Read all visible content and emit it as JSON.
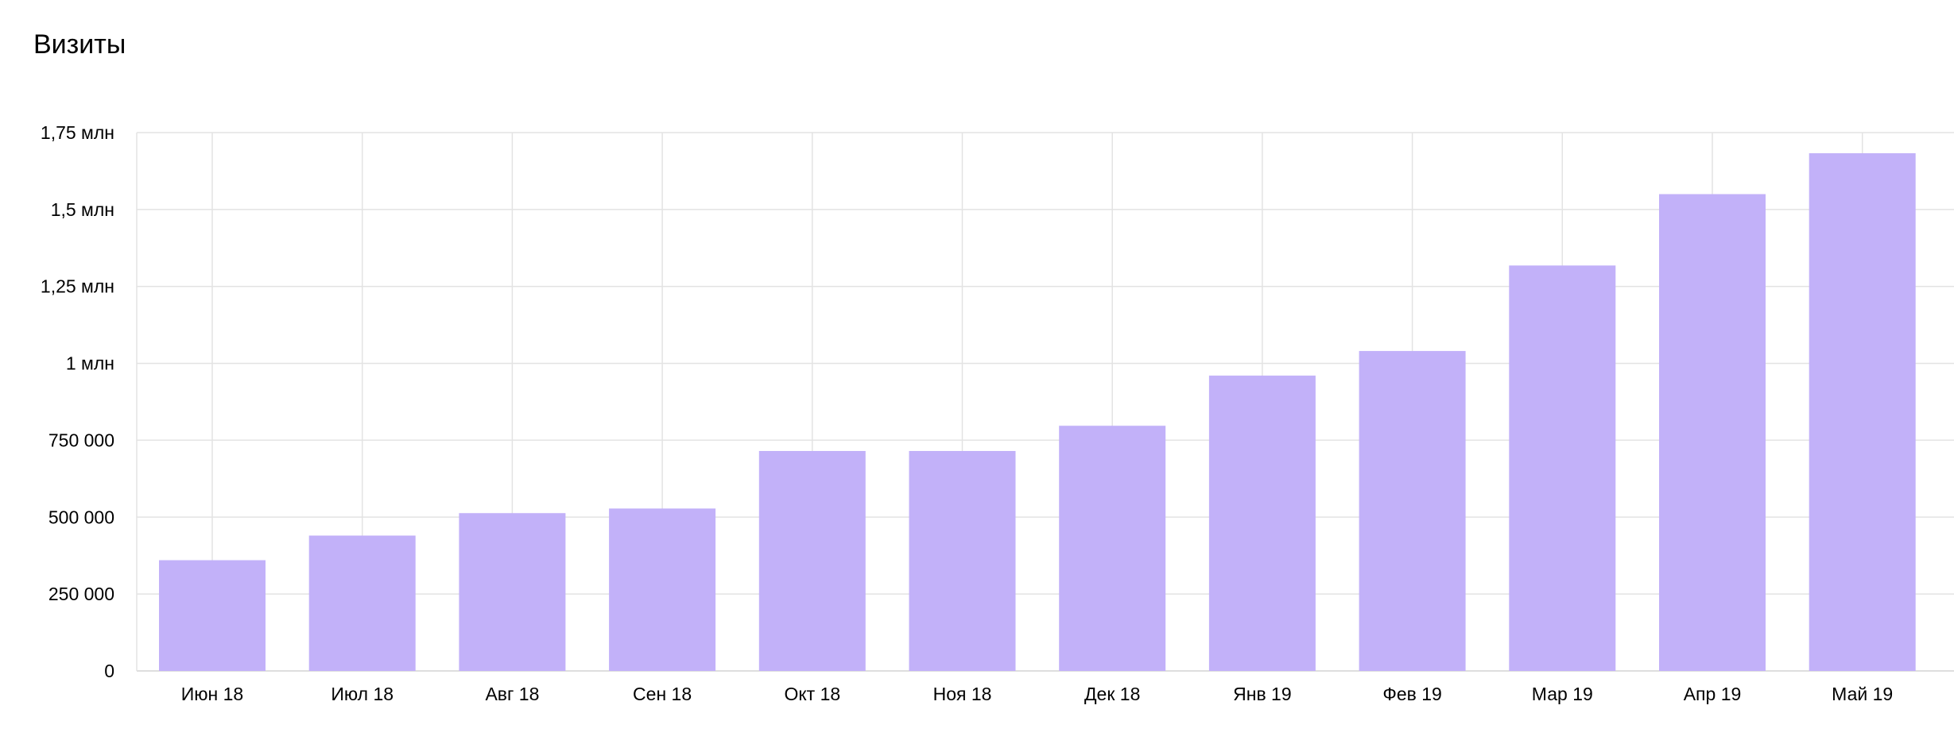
{
  "chart_data": {
    "type": "bar",
    "title": "Визиты",
    "xlabel": "",
    "ylabel": "",
    "categories": [
      "Июн 18",
      "Июл 18",
      "Авг 18",
      "Сен 18",
      "Окт 18",
      "Ноя 18",
      "Дек 18",
      "Янв 19",
      "Фев 19",
      "Мар 19",
      "Апр 19",
      "Май 19"
    ],
    "series": [
      {
        "values": [
          360000,
          440000,
          513000,
          528000,
          715000,
          715000,
          797000,
          960000,
          1040000,
          1318000,
          1550000,
          1683000
        ]
      }
    ],
    "ylim": [
      0,
      1750000
    ],
    "yticks": [
      {
        "value": 0,
        "label": "0"
      },
      {
        "value": 250000,
        "label": "250 000"
      },
      {
        "value": 500000,
        "label": "500 000"
      },
      {
        "value": 750000,
        "label": "750 000"
      },
      {
        "value": 1000000,
        "label": "1 млн"
      },
      {
        "value": 1250000,
        "label": "1,25 млн"
      },
      {
        "value": 1500000,
        "label": "1,5 млн"
      },
      {
        "value": 1750000,
        "label": "1,75 млн"
      }
    ],
    "grid": true,
    "legend": "none",
    "colors": {
      "bar": "#c2b1f9",
      "grid": "#e3e3e3"
    }
  }
}
